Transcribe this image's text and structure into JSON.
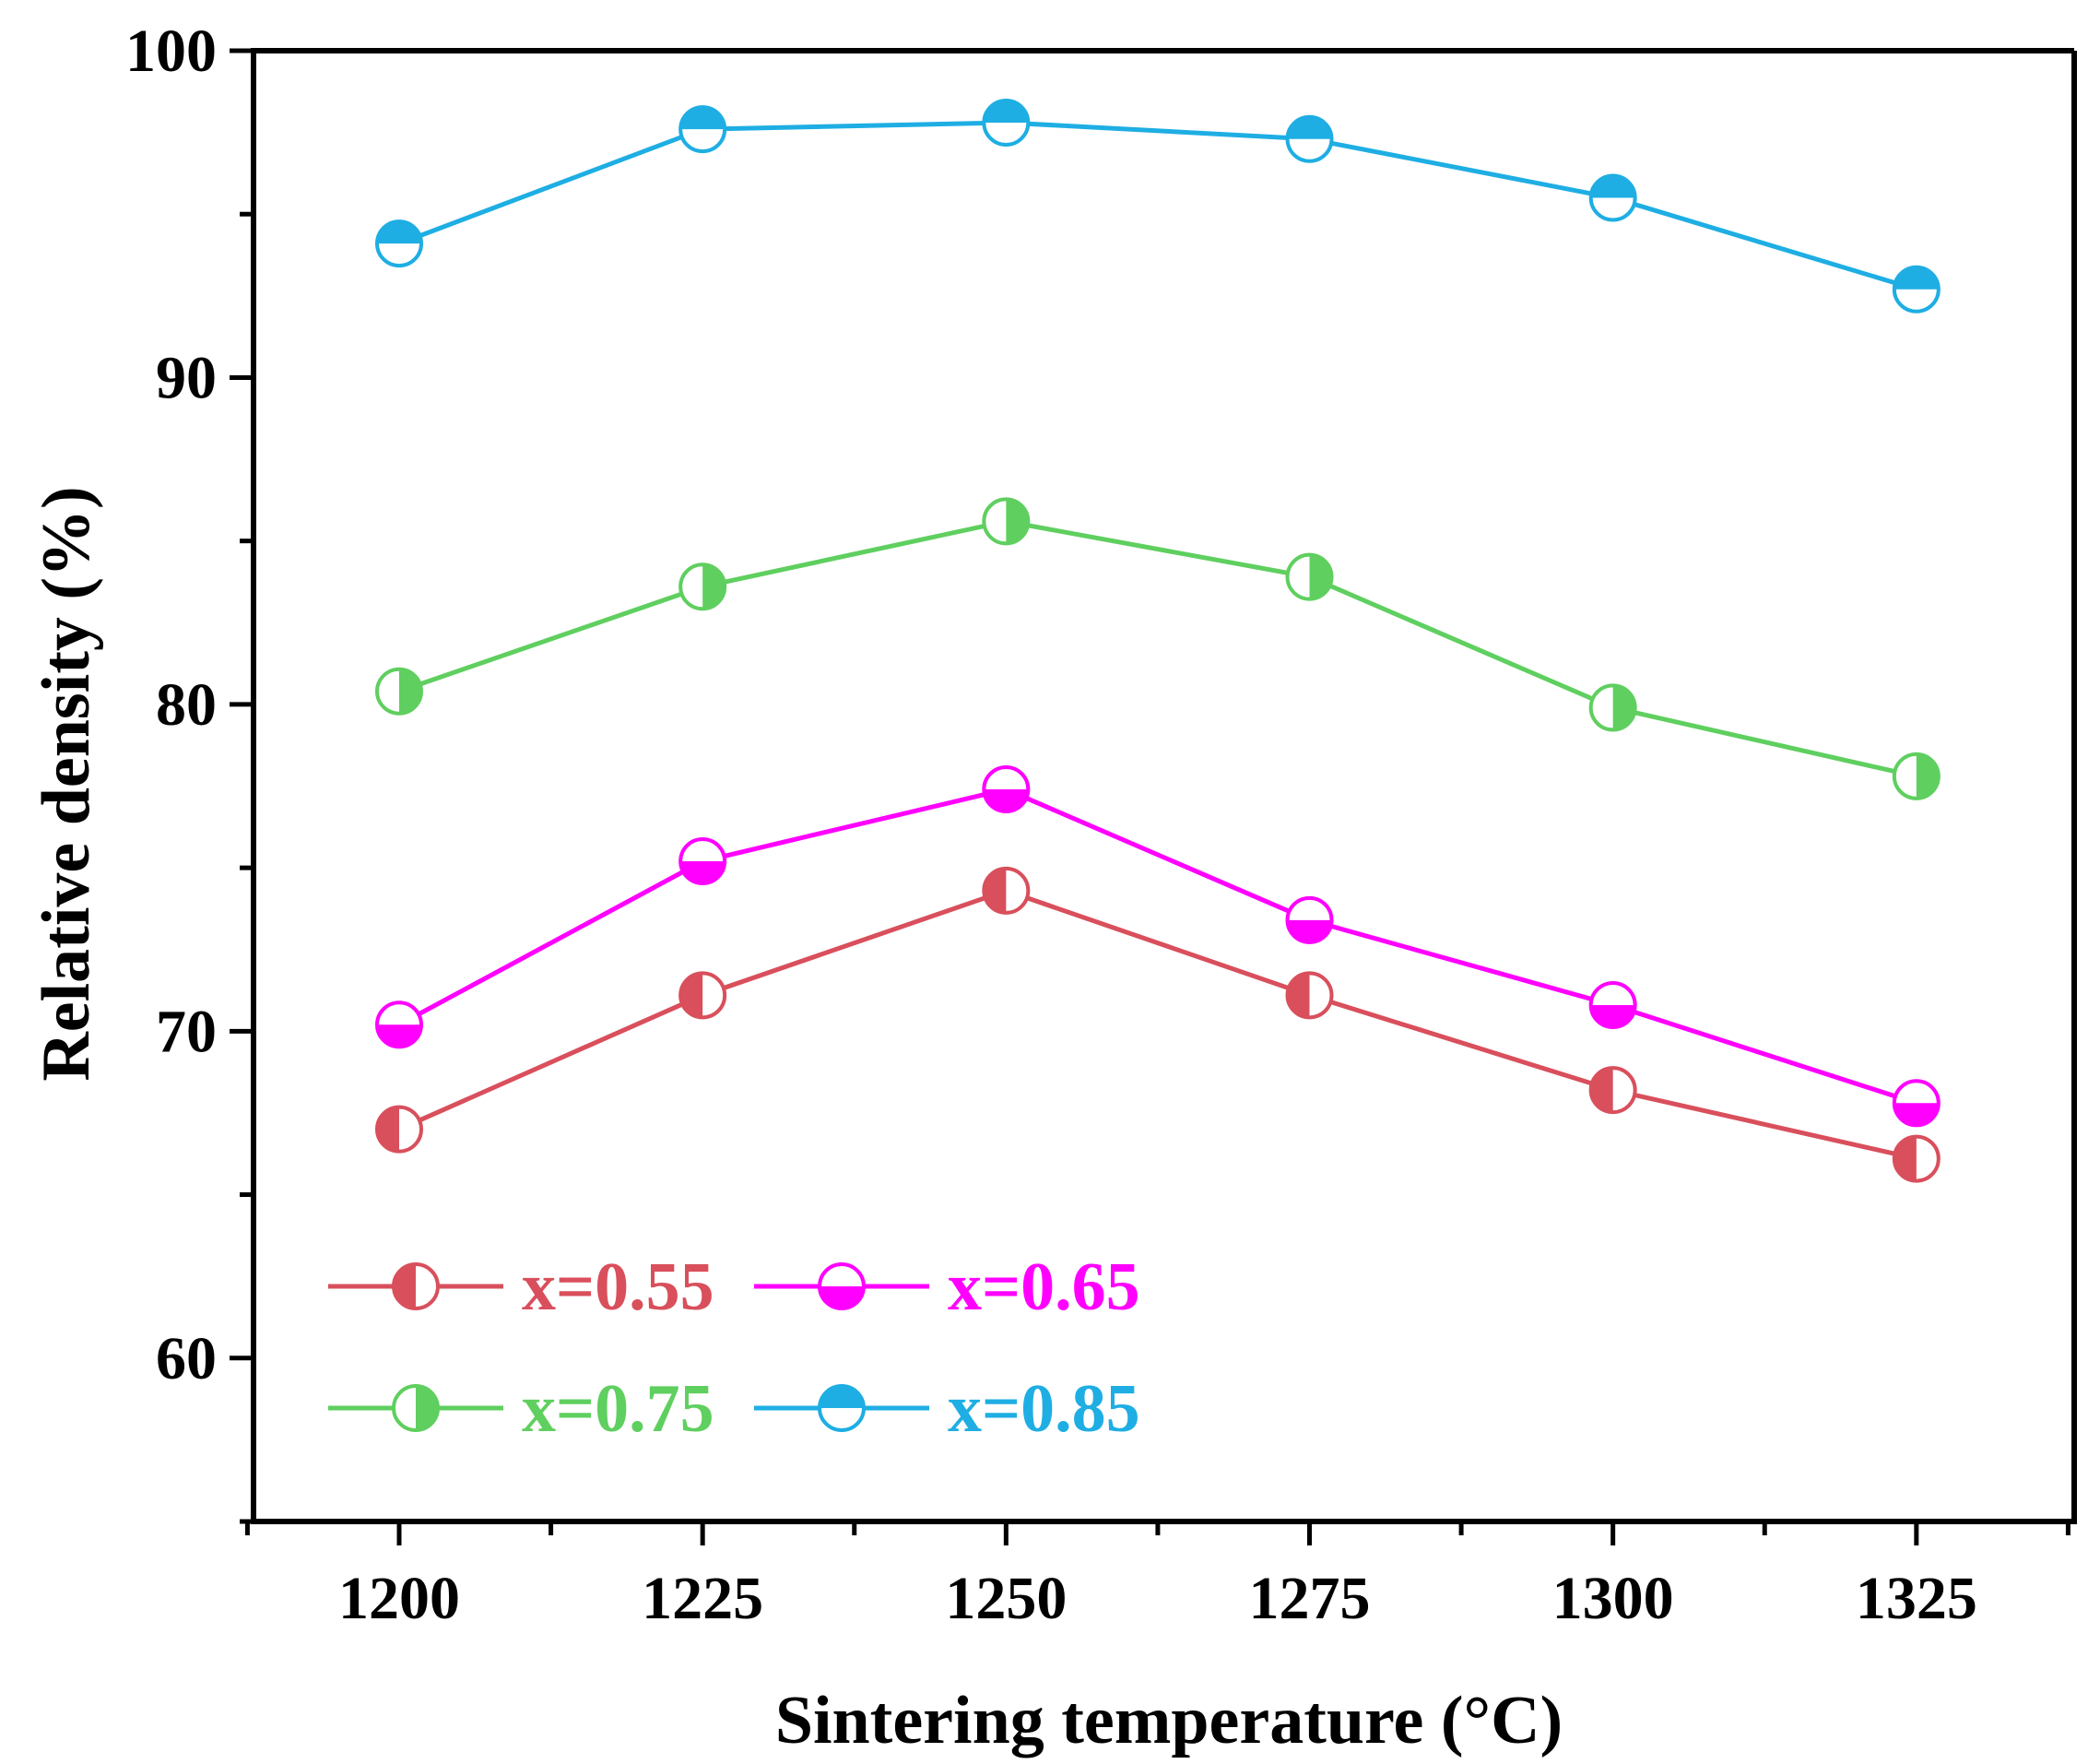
{
  "chart_data": {
    "type": "line",
    "xlabel": "Sintering temperature (°C)",
    "ylabel": "Relative density (%)",
    "x": [
      1200,
      1225,
      1250,
      1275,
      1300,
      1325
    ],
    "xlim": [
      1188,
      1338
    ],
    "ylim": [
      55,
      100
    ],
    "y_ticks": [
      60,
      70,
      80,
      90,
      100
    ],
    "x_ticks": [
      1200,
      1225,
      1250,
      1275,
      1300,
      1325
    ],
    "grid": false,
    "legend_position": "bottom-left",
    "series": [
      {
        "name": "x=0.55",
        "color": "#d94f5c",
        "marker": "half-left",
        "values": [
          67.0,
          71.1,
          74.3,
          71.1,
          68.2,
          66.1
        ]
      },
      {
        "name": "x=0.65",
        "color": "#ff00ff",
        "marker": "half-bottom",
        "values": [
          70.2,
          75.2,
          77.4,
          73.4,
          70.8,
          67.8
        ]
      },
      {
        "name": "x=0.75",
        "color": "#5fcf5f",
        "marker": "half-right",
        "values": [
          80.4,
          83.6,
          85.6,
          83.9,
          79.9,
          77.8
        ]
      },
      {
        "name": "x=0.85",
        "color": "#1eaee3",
        "marker": "half-top",
        "values": [
          94.1,
          97.6,
          97.8,
          97.3,
          95.5,
          92.7
        ]
      }
    ]
  }
}
